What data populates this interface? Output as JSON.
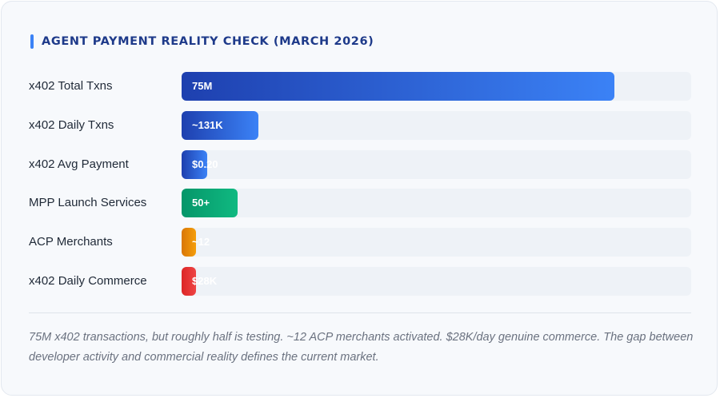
{
  "chart_data": {
    "type": "bar",
    "orientation": "horizontal",
    "title": "AGENT PAYMENT REALITY CHECK (MARCH 2026)",
    "categories": [
      "x402 Total Txns",
      "x402 Daily Txns",
      "x402 Avg Payment",
      "MPP Launch Services",
      "ACP Merchants",
      "x402 Daily Commerce"
    ],
    "values": [
      85,
      15,
      5,
      11,
      1.5,
      2.9
    ],
    "value_labels": [
      "75M",
      "~131K",
      "$0.20",
      "50+",
      "~12",
      "$28K"
    ],
    "xlim": [
      0,
      100
    ],
    "bar_colors": [
      [
        "#1e40af",
        "#3b82f6"
      ],
      [
        "#1e40af",
        "#3b82f6"
      ],
      [
        "#1e40af",
        "#3b82f6"
      ],
      [
        "#059669",
        "#10b981"
      ],
      [
        "#d97706",
        "#f59e0b"
      ],
      [
        "#dc2626",
        "#ef4444"
      ]
    ],
    "track_color": "#eef2f7",
    "accent_color": "#3b82f6",
    "title_color": "#1e3a8a"
  },
  "footnote": "75M x402 transactions, but roughly half is testing. ~12 ACP merchants activated. $28K/day genuine commerce. The gap between developer activity and commercial reality defines the current market."
}
